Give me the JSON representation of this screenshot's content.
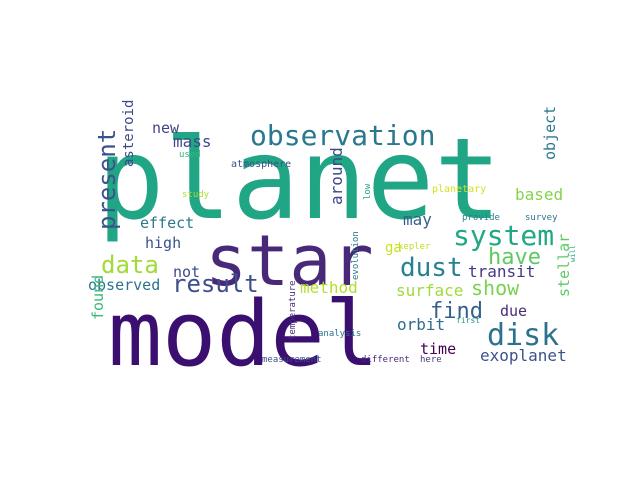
{
  "wordcloud": {
    "words": [
      {
        "text": "planet",
        "color": "#21a685"
      },
      {
        "text": "model",
        "color": "#3b0f70"
      },
      {
        "text": "star",
        "color": "#482979"
      },
      {
        "text": "observation",
        "color": "#2a788e"
      },
      {
        "text": "system",
        "color": "#22a884"
      },
      {
        "text": "disk",
        "color": "#2c728e"
      },
      {
        "text": "dust",
        "color": "#26828e"
      },
      {
        "text": "data",
        "color": "#a2da37"
      },
      {
        "text": "result",
        "color": "#3d4e8a"
      },
      {
        "text": "present",
        "color": "#3b528b"
      },
      {
        "text": "have",
        "color": "#5ec962"
      },
      {
        "text": "show",
        "color": "#7ad151"
      },
      {
        "text": "find",
        "color": "#355f8d"
      },
      {
        "text": "transit",
        "color": "#443983"
      },
      {
        "text": "exoplanet",
        "color": "#3b528b"
      },
      {
        "text": "method",
        "color": "#b5de2b"
      },
      {
        "text": "surface",
        "color": "#a0da39"
      },
      {
        "text": "orbit",
        "color": "#2f6b8e"
      },
      {
        "text": "mass",
        "color": "#3e4989"
      },
      {
        "text": "new",
        "color": "#414487"
      },
      {
        "text": "effect",
        "color": "#2a788e"
      },
      {
        "text": "high",
        "color": "#3b528b"
      },
      {
        "text": "not",
        "color": "#3e4a89"
      },
      {
        "text": "observed",
        "color": "#2c738e"
      },
      {
        "text": "found",
        "color": "#38b977"
      },
      {
        "text": "based",
        "color": "#84d44b"
      },
      {
        "text": "around",
        "color": "#3e4989"
      },
      {
        "text": "may",
        "color": "#355f8d"
      },
      {
        "text": "time",
        "color": "#440154"
      },
      {
        "text": "due",
        "color": "#472c7a"
      },
      {
        "text": "stellar",
        "color": "#5ec962"
      },
      {
        "text": "object",
        "color": "#2a788e"
      },
      {
        "text": "asteroid",
        "color": "#3e4989"
      },
      {
        "text": "ga",
        "color": "#cde11d"
      },
      {
        "text": "kepler",
        "color": "#bddf26"
      },
      {
        "text": "atmosphere",
        "color": "#3b528b"
      },
      {
        "text": "planetary",
        "color": "#d2e21b"
      },
      {
        "text": "provide",
        "color": "#26828e"
      },
      {
        "text": "survey",
        "color": "#2c728e"
      },
      {
        "text": "study",
        "color": "#addc30"
      },
      {
        "text": "used",
        "color": "#35b779"
      },
      {
        "text": "low",
        "color": "#1f9e89"
      },
      {
        "text": "evolution",
        "color": "#2a788e"
      },
      {
        "text": "temperature",
        "color": "#472d7b"
      },
      {
        "text": "analysis",
        "color": "#2c728e"
      },
      {
        "text": "first",
        "color": "#20928c"
      },
      {
        "text": "measurement",
        "color": "#3b528b"
      },
      {
        "text": "different",
        "color": "#482878"
      },
      {
        "text": "here",
        "color": "#443983"
      },
      {
        "text": "will",
        "color": "#22a884"
      }
    ]
  }
}
